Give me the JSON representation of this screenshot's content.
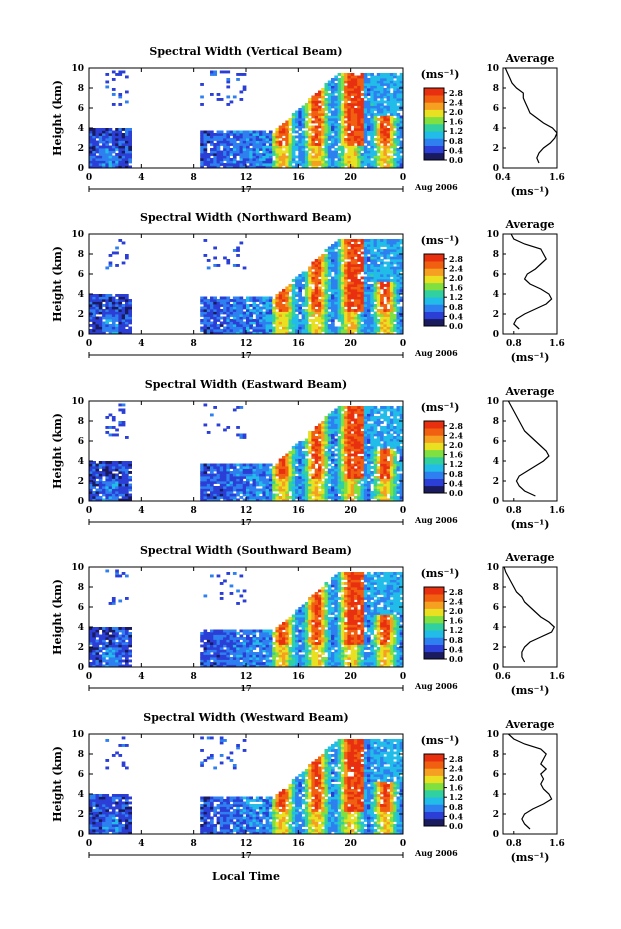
{
  "figure": {
    "xaxis_label": "Local Time",
    "date_label": "Aug 2006",
    "day_label": "17",
    "average_title": "Average",
    "colorbar_unit": "(ms⁻¹)",
    "avg_xlabel": "(ms⁻¹)"
  },
  "chart_data": [
    {
      "type": "heatmap",
      "title": "Spectral Width (Vertical Beam)",
      "ylabel": "Height (km)",
      "xlabel": "Local Time",
      "x_ticks": [
        "0",
        "4",
        "8",
        "12",
        "16",
        "20",
        "0"
      ],
      "x_range": [
        0,
        24
      ],
      "y_ticks": [
        "0",
        "2",
        "4",
        "6",
        "8",
        "10"
      ],
      "y_range": [
        0,
        10
      ],
      "colorbar_ticks": [
        "0.0",
        "0.4",
        "0.8",
        "1.2",
        "1.6",
        "2.0",
        "2.4",
        "2.8"
      ],
      "colorbar_range": [
        0.0,
        3.0
      ],
      "colors": [
        "#1a1a5e",
        "#2b3fd6",
        "#2e7ff0",
        "#22bce8",
        "#30d0a0",
        "#80e040",
        "#e8e020",
        "#f5a020",
        "#f06010",
        "#e83010"
      ],
      "average_profile": {
        "x_ticks": [
          "0.4",
          "1.6"
        ],
        "x_range": [
          0.4,
          1.6
        ],
        "y_range": [
          0,
          10
        ],
        "x": [
          1.2,
          1.15,
          1.2,
          1.3,
          1.45,
          1.55,
          1.6,
          1.5,
          1.3,
          1.15,
          1.0,
          0.95,
          0.9,
          0.85,
          0.85,
          0.7,
          0.6,
          0.55,
          0.5,
          0.45
        ],
        "y": [
          0.5,
          1.0,
          1.5,
          2.0,
          2.5,
          3.0,
          3.5,
          4.0,
          4.5,
          5.0,
          5.5,
          6.0,
          6.5,
          7.0,
          7.5,
          8.0,
          8.5,
          9.0,
          9.5,
          10.0
        ]
      }
    },
    {
      "type": "heatmap",
      "title": "Spectral Width (Northward Beam)",
      "ylabel": "Height (km)",
      "xlabel": "Local Time",
      "x_ticks": [
        "0",
        "4",
        "8",
        "12",
        "16",
        "20",
        "0"
      ],
      "x_range": [
        0,
        24
      ],
      "y_ticks": [
        "0",
        "2",
        "4",
        "6",
        "8",
        "10"
      ],
      "y_range": [
        0,
        10
      ],
      "colorbar_ticks": [
        "0.0",
        "0.4",
        "0.8",
        "1.2",
        "1.6",
        "2.0",
        "2.4",
        "2.8"
      ],
      "colorbar_range": [
        0.0,
        3.0
      ],
      "colors": [
        "#1a1a5e",
        "#2b3fd6",
        "#2e7ff0",
        "#22bce8",
        "#30d0a0",
        "#80e040",
        "#e8e020",
        "#f5a020",
        "#f06010",
        "#e83010"
      ],
      "average_profile": {
        "x_ticks": [
          "0.8",
          "1.6"
        ],
        "x_range": [
          0.6,
          1.6
        ],
        "y_range": [
          0,
          10
        ],
        "x": [
          0.9,
          0.8,
          0.85,
          1.0,
          1.2,
          1.4,
          1.5,
          1.45,
          1.3,
          1.1,
          1.0,
          1.05,
          1.2,
          1.3,
          1.4,
          1.35,
          1.3,
          1.0,
          0.8,
          0.75
        ],
        "y": [
          0.5,
          1.0,
          1.5,
          2.0,
          2.5,
          3.0,
          3.5,
          4.0,
          4.5,
          5.0,
          5.5,
          6.0,
          6.5,
          7.0,
          7.5,
          8.0,
          8.5,
          9.0,
          9.5,
          10.0
        ]
      }
    },
    {
      "type": "heatmap",
      "title": "Spectral Width (Eastward Beam)",
      "ylabel": "Height (km)",
      "xlabel": "Local Time",
      "x_ticks": [
        "0",
        "4",
        "8",
        "12",
        "16",
        "20",
        "0"
      ],
      "x_range": [
        0,
        24
      ],
      "y_ticks": [
        "0",
        "2",
        "4",
        "6",
        "8",
        "10"
      ],
      "y_range": [
        0,
        10
      ],
      "colorbar_ticks": [
        "0.0",
        "0.4",
        "0.8",
        "1.2",
        "1.6",
        "2.0",
        "2.4",
        "2.8"
      ],
      "colorbar_range": [
        0.0,
        3.0
      ],
      "colors": [
        "#1a1a5e",
        "#2b3fd6",
        "#2e7ff0",
        "#22bce8",
        "#30d0a0",
        "#80e040",
        "#e8e020",
        "#f5a020",
        "#f06010",
        "#e83010"
      ],
      "average_profile": {
        "x_ticks": [
          "0.8",
          "1.6"
        ],
        "x_range": [
          0.6,
          1.6
        ],
        "y_range": [
          0,
          10
        ],
        "x": [
          1.2,
          1.0,
          0.9,
          0.85,
          0.9,
          1.05,
          1.2,
          1.35,
          1.45,
          1.4,
          1.3,
          1.2,
          1.1,
          1.0,
          0.95,
          0.9,
          0.85,
          0.8,
          0.75,
          0.7
        ],
        "y": [
          0.5,
          1.0,
          1.5,
          2.0,
          2.5,
          3.0,
          3.5,
          4.0,
          4.5,
          5.0,
          5.5,
          6.0,
          6.5,
          7.0,
          7.5,
          8.0,
          8.5,
          9.0,
          9.5,
          10.0
        ]
      }
    },
    {
      "type": "heatmap",
      "title": "Spectral Width (Southward Beam)",
      "ylabel": "Height (km)",
      "xlabel": "Local Time",
      "x_ticks": [
        "0",
        "4",
        "8",
        "12",
        "16",
        "20",
        "0"
      ],
      "x_range": [
        0,
        24
      ],
      "y_ticks": [
        "0",
        "2",
        "4",
        "6",
        "8",
        "10"
      ],
      "y_range": [
        0,
        10
      ],
      "colorbar_ticks": [
        "0.0",
        "0.4",
        "0.8",
        "1.2",
        "1.6",
        "2.0",
        "2.4",
        "2.8"
      ],
      "colorbar_range": [
        0.0,
        3.0
      ],
      "colors": [
        "#1a1a5e",
        "#2b3fd6",
        "#2e7ff0",
        "#22bce8",
        "#30d0a0",
        "#80e040",
        "#e8e020",
        "#f5a020",
        "#f06010",
        "#e83010"
      ],
      "average_profile": {
        "x_ticks": [
          "0.6",
          "1.6"
        ],
        "x_range": [
          0.6,
          1.6
        ],
        "y_range": [
          0,
          10
        ],
        "x": [
          1.0,
          0.95,
          0.95,
          1.0,
          1.1,
          1.3,
          1.5,
          1.55,
          1.45,
          1.3,
          1.2,
          1.1,
          1.0,
          0.95,
          0.85,
          0.8,
          0.75,
          0.7,
          0.65,
          0.62
        ],
        "y": [
          0.5,
          1.0,
          1.5,
          2.0,
          2.5,
          3.0,
          3.5,
          4.0,
          4.5,
          5.0,
          5.5,
          6.0,
          6.5,
          7.0,
          7.5,
          8.0,
          8.5,
          9.0,
          9.5,
          10.0
        ]
      }
    },
    {
      "type": "heatmap",
      "title": "Spectral Width (Westward Beam)",
      "ylabel": "Height (km)",
      "xlabel": "Local Time",
      "x_ticks": [
        "0",
        "4",
        "8",
        "12",
        "16",
        "20",
        "0"
      ],
      "x_range": [
        0,
        24
      ],
      "y_ticks": [
        "0",
        "2",
        "4",
        "6",
        "8",
        "10"
      ],
      "y_range": [
        0,
        10
      ],
      "colorbar_ticks": [
        "0.0",
        "0.4",
        "0.8",
        "1.2",
        "1.6",
        "2.0",
        "2.4",
        "2.8"
      ],
      "colorbar_range": [
        0.0,
        3.0
      ],
      "colors": [
        "#1a1a5e",
        "#2b3fd6",
        "#2e7ff0",
        "#22bce8",
        "#30d0a0",
        "#80e040",
        "#e8e020",
        "#f5a020",
        "#f06010",
        "#e83010"
      ],
      "average_profile": {
        "x_ticks": [
          "0.8",
          "1.6"
        ],
        "x_range": [
          0.6,
          1.6
        ],
        "y_range": [
          0,
          10
        ],
        "x": [
          1.1,
          1.0,
          0.95,
          1.0,
          1.15,
          1.35,
          1.5,
          1.45,
          1.35,
          1.3,
          1.35,
          1.3,
          1.4,
          1.3,
          1.35,
          1.4,
          1.3,
          1.0,
          0.8,
          0.7
        ],
        "y": [
          0.5,
          1.0,
          1.5,
          2.0,
          2.5,
          3.0,
          3.5,
          4.0,
          4.5,
          5.0,
          5.5,
          6.0,
          6.5,
          7.0,
          7.5,
          8.0,
          8.5,
          9.0,
          9.5,
          10.0
        ]
      }
    }
  ]
}
